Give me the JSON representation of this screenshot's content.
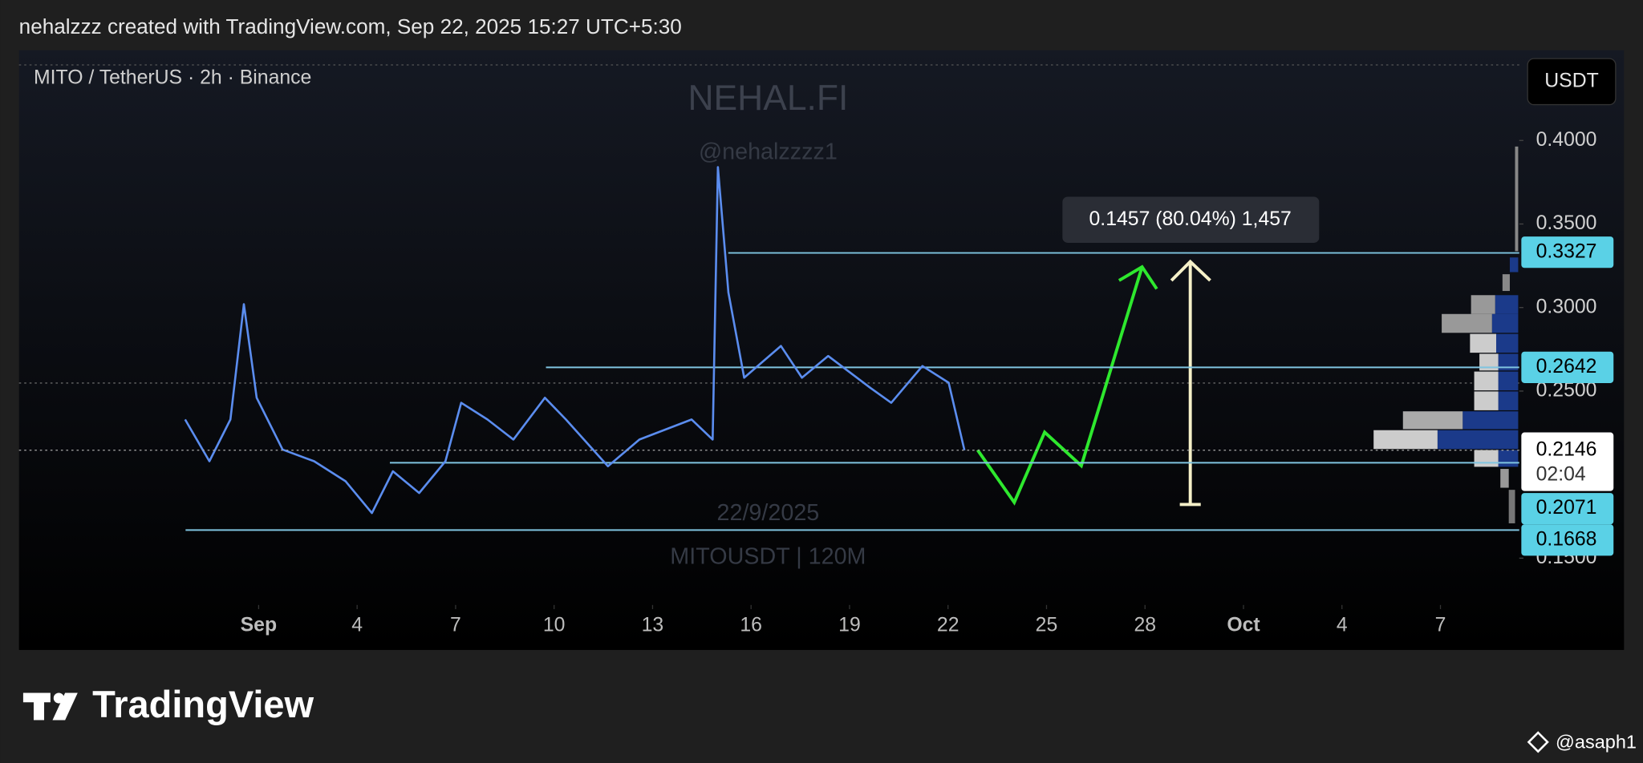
{
  "header": "nehalzzz created with TradingView.com, Sep 22, 2025 15:27 UTC+5:30",
  "chart_data": {
    "type": "line",
    "title": "MITO / TetherUS · 2h · Binance",
    "currency": "USDT",
    "watermark_name": "NEHAL.FI",
    "watermark_handle": "@nehalzzzz1",
    "watermark_date": "22/9/2025",
    "watermark_symbol": "MITOUSDT | 120M",
    "measure_label": "0.1457 (80.04%) 1,457",
    "color": "#5b8def",
    "x": [
      -1.24,
      -0.5,
      0.14,
      0.55,
      0.94,
      1.73,
      2.69,
      3.65,
      4.45,
      5.09,
      5.89,
      6.69,
      7.17,
      7.97,
      8.76,
      9.72,
      10.36,
      11.64,
      12.6,
      14.19,
      14.83,
      14.99,
      15.31,
      15.79,
      16.91,
      17.55,
      18.35,
      19.63,
      20.27,
      21.22,
      22.02,
      22.5
    ],
    "values": [
      0.233,
      0.208,
      0.233,
      0.302,
      0.246,
      0.215,
      0.208,
      0.196,
      0.177,
      0.202,
      0.189,
      0.208,
      0.243,
      0.233,
      0.221,
      0.246,
      0.233,
      0.205,
      0.221,
      0.233,
      0.221,
      0.384,
      0.309,
      0.258,
      0.277,
      0.258,
      0.271,
      0.252,
      0.243,
      0.265,
      0.255,
      0.2146
    ],
    "xlim": [
      -6.3,
      39.4
    ],
    "xticks": [
      {
        "value": 1,
        "label": "Sep"
      },
      4,
      7,
      10,
      13,
      16,
      19,
      22,
      25,
      28,
      {
        "value": 31,
        "label": "Oct"
      },
      {
        "value": 34,
        "label": "4"
      },
      {
        "value": 37,
        "label": "7"
      }
    ],
    "ylim": [
      0.127,
      0.454
    ],
    "yticks": [
      {
        "value": 0.4,
        "label": "0.4000"
      },
      {
        "value": 0.35,
        "label": "0.3500"
      },
      {
        "value": 0.3,
        "label": "0.3000"
      },
      {
        "value": 0.25,
        "label": "0.2500"
      },
      {
        "value": 0.15,
        "label": "0.1500"
      }
    ],
    "levels": [
      0.3327,
      0.2642,
      0.2071,
      0.1668
    ],
    "last_price": 0.2146,
    "countdown": "02:04"
  },
  "footer": {
    "logo": "TradingView",
    "credit": "@asaph1"
  }
}
